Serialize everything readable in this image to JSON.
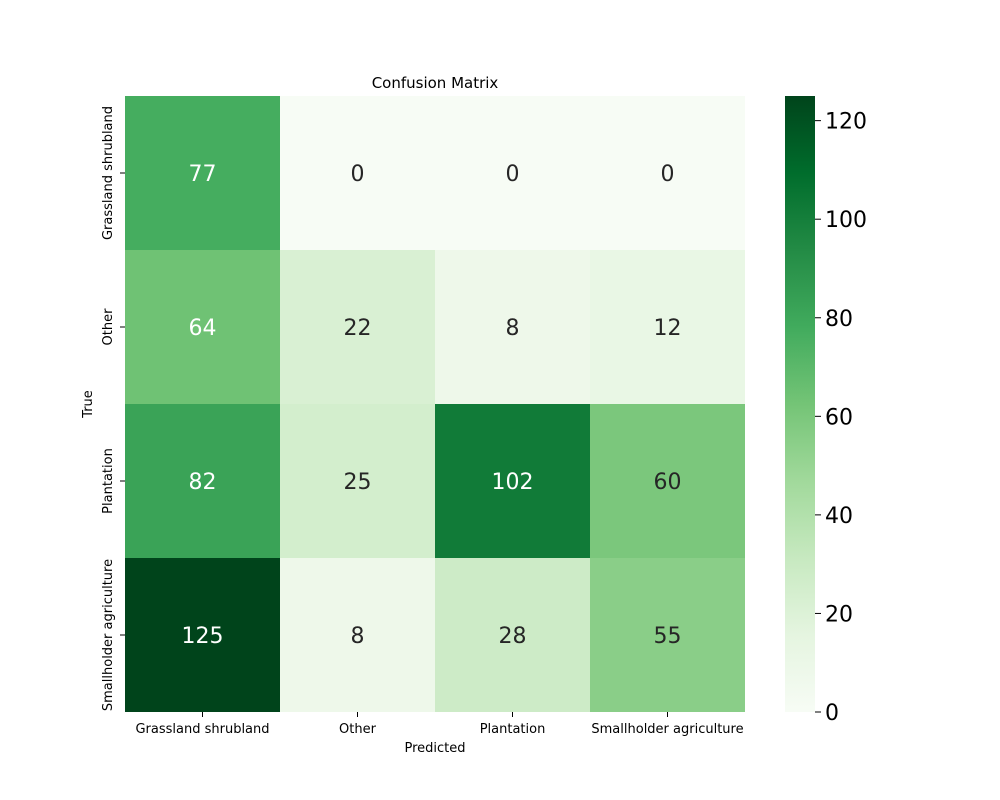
{
  "chart_data": {
    "type": "heatmap",
    "title": "Confusion Matrix",
    "xlabel": "Predicted",
    "ylabel": "True",
    "x_categories": [
      "Grassland shrubland",
      "Other",
      "Plantation",
      "Smallholder agriculture"
    ],
    "y_categories": [
      "Grassland shrubland",
      "Other",
      "Plantation",
      "Smallholder agriculture"
    ],
    "values": [
      [
        77,
        0,
        0,
        0
      ],
      [
        64,
        22,
        8,
        12
      ],
      [
        82,
        25,
        102,
        60
      ],
      [
        125,
        8,
        28,
        55
      ]
    ],
    "colormap": "Greens",
    "colorbar": {
      "range": [
        0,
        125
      ],
      "ticks": [
        0,
        20,
        40,
        60,
        80,
        100,
        120
      ]
    },
    "colors": {
      "low": "#f7fcf5",
      "high": "#00441b"
    }
  }
}
